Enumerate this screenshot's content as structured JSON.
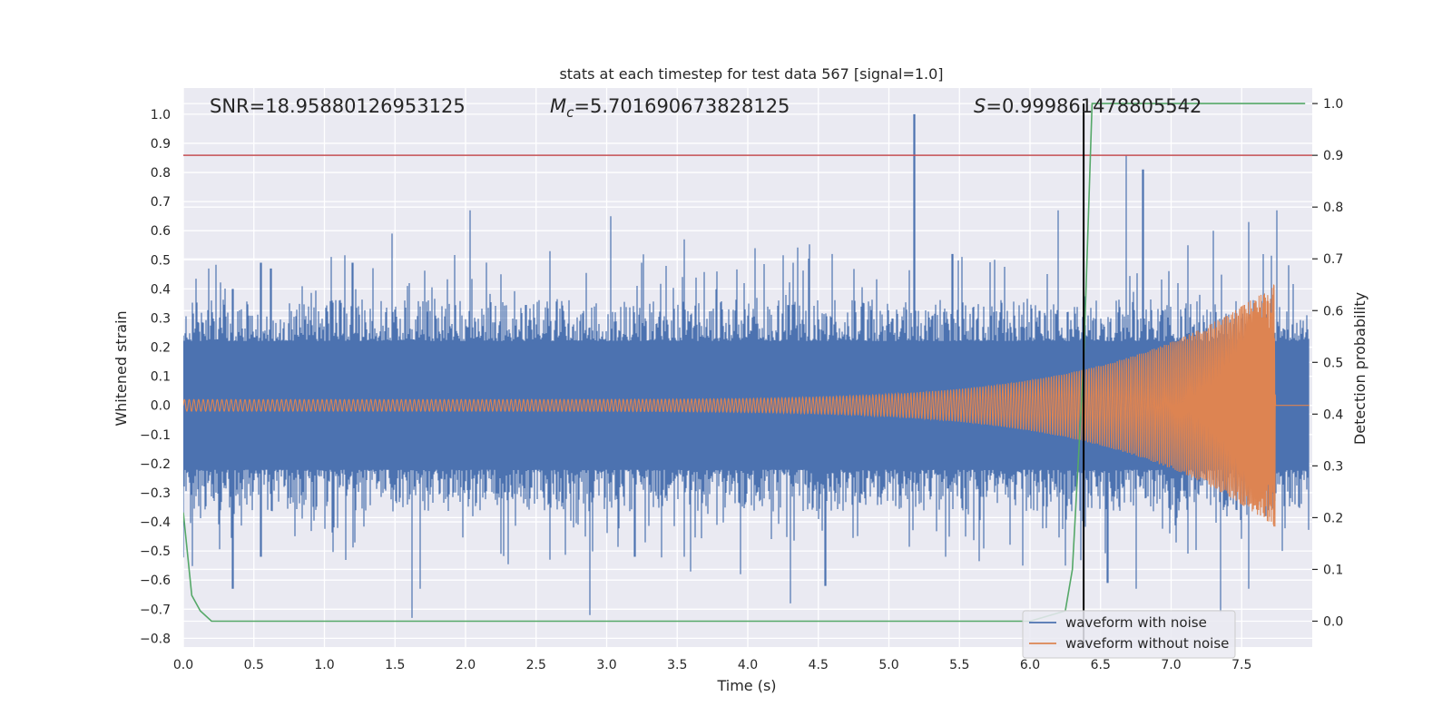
{
  "chart_data": {
    "type": "line",
    "title": "stats at each timestep for test data 567 [signal=1.0]",
    "xlabel": "Time (s)",
    "ylabel_left": "Whitened strain",
    "ylabel_right": "Detection probability",
    "xlim": [
      0.0,
      8.0
    ],
    "ylim_left": [
      -0.83,
      1.09
    ],
    "ylim_right": [
      -0.05,
      1.03
    ],
    "x_ticks": [
      "0.0",
      "0.5",
      "1.0",
      "1.5",
      "2.0",
      "2.5",
      "3.0",
      "3.5",
      "4.0",
      "4.5",
      "5.0",
      "5.5",
      "6.0",
      "6.5",
      "7.0",
      "7.5"
    ],
    "y_ticks_left": [
      "-0.8",
      "-0.7",
      "-0.6",
      "-0.5",
      "-0.4",
      "-0.3",
      "-0.2",
      "-0.1",
      "0.0",
      "0.1",
      "0.2",
      "0.3",
      "0.4",
      "0.5",
      "0.6",
      "0.7",
      "0.8",
      "0.9",
      "1.0"
    ],
    "y_ticks_right": [
      "0.0",
      "0.1",
      "0.2",
      "0.3",
      "0.4",
      "0.5",
      "0.6",
      "0.7",
      "0.8",
      "0.9",
      "1.0"
    ],
    "grid": true,
    "legend_position": "lower-right",
    "annotations": {
      "snr": "SNR=18.95880126953125",
      "mc_symbol": "M",
      "mc_sub": "c",
      "mc_value": "=5.701690673828125",
      "s_symbol": "S",
      "s_value": "=0.999861478805542"
    },
    "series": [
      {
        "name": "waveform with noise",
        "axis": "left",
        "color": "#4c72b0",
        "envelope": {
          "base_amplitude": 0.26,
          "spike_max": 1.0
        },
        "spikes_top": [
          [
            0.18,
            0.47
          ],
          [
            0.35,
            0.4
          ],
          [
            0.55,
            0.49
          ],
          [
            0.62,
            0.47
          ],
          [
            1.05,
            0.51
          ],
          [
            1.2,
            0.49
          ],
          [
            1.48,
            0.59
          ],
          [
            1.6,
            0.42
          ],
          [
            2.03,
            0.67
          ],
          [
            2.25,
            0.45
          ],
          [
            2.6,
            0.53
          ],
          [
            3.03,
            0.65
          ],
          [
            3.25,
            0.49
          ],
          [
            3.55,
            0.57
          ],
          [
            3.78,
            0.46
          ],
          [
            4.05,
            0.54
          ],
          [
            4.32,
            0.49
          ],
          [
            4.6,
            0.52
          ],
          [
            5.18,
            1.0
          ],
          [
            5.45,
            0.52
          ],
          [
            5.75,
            0.5
          ],
          [
            6.2,
            0.67
          ],
          [
            6.38,
            0.55
          ],
          [
            6.68,
            0.86
          ],
          [
            6.8,
            0.81
          ],
          [
            7.12,
            0.55
          ],
          [
            7.3,
            0.6
          ],
          [
            7.55,
            0.63
          ],
          [
            7.75,
            0.67
          ]
        ],
        "spikes_bottom": [
          [
            0.35,
            -0.63
          ],
          [
            0.55,
            -0.52
          ],
          [
            1.15,
            -0.49
          ],
          [
            1.62,
            -0.73
          ],
          [
            1.68,
            -0.63
          ],
          [
            2.25,
            -0.51
          ],
          [
            2.6,
            -0.53
          ],
          [
            2.88,
            -0.72
          ],
          [
            3.2,
            -0.52
          ],
          [
            3.55,
            -0.52
          ],
          [
            3.95,
            -0.58
          ],
          [
            4.3,
            -0.68
          ],
          [
            4.55,
            -0.62
          ],
          [
            5.4,
            -0.52
          ],
          [
            5.95,
            -0.55
          ],
          [
            6.25,
            -0.55
          ],
          [
            6.55,
            -0.61
          ],
          [
            6.75,
            -0.63
          ],
          [
            7.35,
            -0.71
          ],
          [
            7.55,
            -0.63
          ]
        ]
      },
      {
        "name": "waveform without noise",
        "axis": "left",
        "color": "#dd8452",
        "chirp": {
          "amp_start": 0.02,
          "amp_end": 0.42,
          "coalescence_time": 7.74,
          "cycles_to_3s": 98,
          "post_merger_value": 0.0
        }
      },
      {
        "name": "",
        "axis": "right",
        "color": "#55a868",
        "x": [
          0.0,
          0.06,
          0.12,
          0.2,
          0.3,
          1.0,
          2.0,
          3.0,
          4.0,
          5.0,
          6.0,
          6.25,
          6.3,
          6.38,
          6.44,
          6.5,
          7.0,
          7.5,
          7.95
        ],
        "y": [
          0.21,
          0.05,
          0.02,
          0.0,
          0.0,
          0.0,
          0.0,
          0.0,
          0.0,
          0.0,
          0.0,
          0.02,
          0.1,
          0.5,
          1.0,
          1.0,
          1.0,
          1.0,
          1.0
        ]
      }
    ],
    "threshold_line": {
      "axis": "right",
      "value": 0.9,
      "color": "#c44e52"
    },
    "detection_marker": {
      "x": 6.38,
      "axis": "right",
      "y_top": 1.0,
      "color": "#000000"
    }
  }
}
